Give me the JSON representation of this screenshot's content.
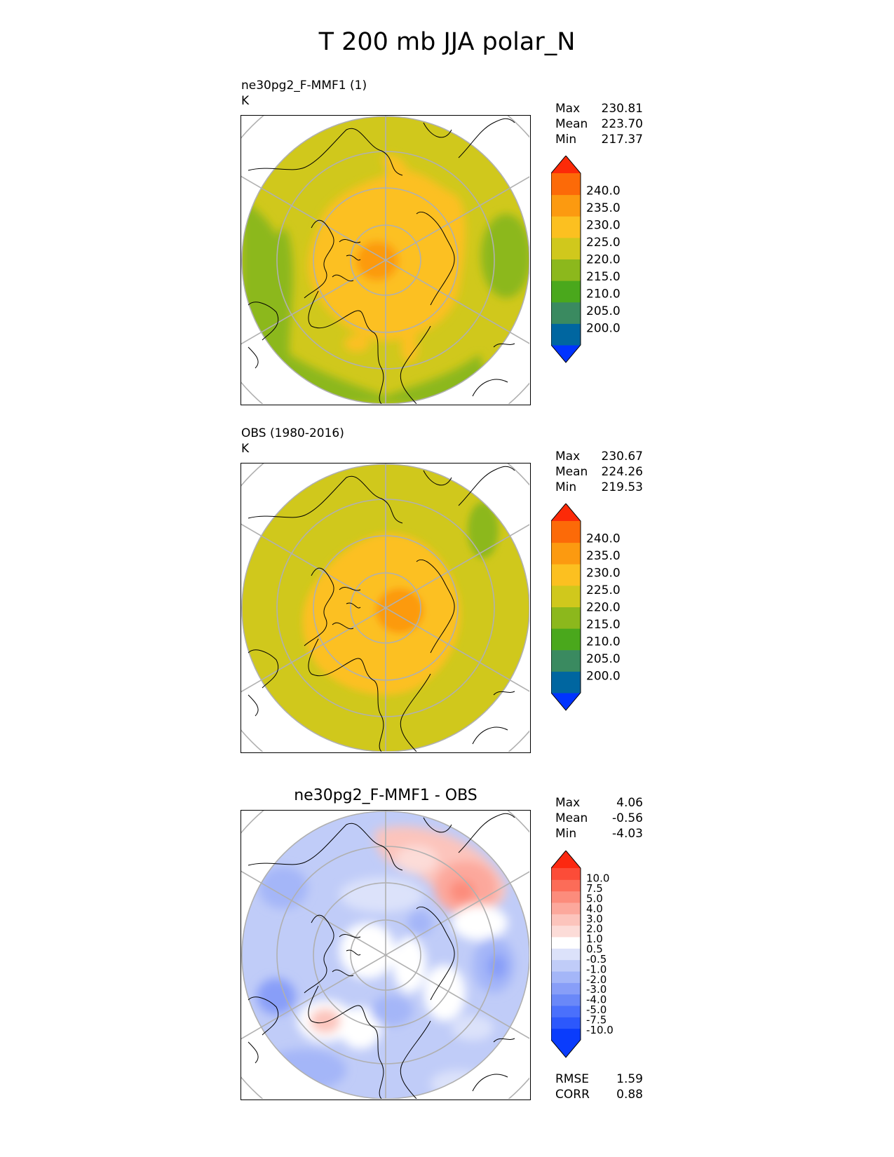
{
  "title": "T 200 mb JJA polar_N",
  "colors": {
    "abs_levels": [
      "#0033ff",
      "#0066a0",
      "#3a8a60",
      "#4aa81c",
      "#8cb81c",
      "#d0c81c",
      "#fcc020",
      "#fc9a10",
      "#fc6a08",
      "#fc2a08"
    ],
    "diff_levels": [
      "#0a3cfc",
      "#2c58fc",
      "#4a70fc",
      "#6a88f8",
      "#889ef8",
      "#a4b6f8",
      "#c0ccf8",
      "#dce2fa",
      "#ffffff",
      "#fcdcd8",
      "#fcc4bc",
      "#fca89c",
      "#fc8c7c",
      "#fc6c58",
      "#fc4c38",
      "#fc2810"
    ]
  },
  "panels": [
    {
      "title_line1": "ne30pg2_F-MMF1 (1)",
      "title_line2": "K",
      "stats": [
        {
          "label": "Max",
          "value": "230.81"
        },
        {
          "label": "Mean",
          "value": "223.70"
        },
        {
          "label": "Min",
          "value": "217.37"
        }
      ],
      "colorbar_ticks": [
        "240.0",
        "235.0",
        "230.0",
        "225.0",
        "220.0",
        "215.0",
        "210.0",
        "205.0",
        "200.0"
      ]
    },
    {
      "title_line1": "OBS (1980-2016)",
      "title_line2": "K",
      "stats": [
        {
          "label": "Max",
          "value": "230.67"
        },
        {
          "label": "Mean",
          "value": "224.26"
        },
        {
          "label": "Min",
          "value": "219.53"
        }
      ],
      "colorbar_ticks": [
        "240.0",
        "235.0",
        "230.0",
        "225.0",
        "220.0",
        "215.0",
        "210.0",
        "205.0",
        "200.0"
      ]
    },
    {
      "title": "ne30pg2_F-MMF1 - OBS",
      "stats": [
        {
          "label": "Max",
          "value": "4.06"
        },
        {
          "label": "Mean",
          "value": "-0.56"
        },
        {
          "label": "Min",
          "value": "-4.03"
        }
      ],
      "colorbar_ticks": [
        "10.0",
        "7.5",
        "5.0",
        "4.0",
        "3.0",
        "2.0",
        "1.0",
        "0.5",
        "-0.5",
        "-1.0",
        "-2.0",
        "-3.0",
        "-4.0",
        "-5.0",
        "-7.5",
        "-10.0"
      ],
      "metrics": [
        {
          "label": "RMSE",
          "value": "1.59"
        },
        {
          "label": "CORR",
          "value": "0.88"
        }
      ]
    }
  ],
  "chart_data": [
    {
      "type": "heatmap",
      "title": "ne30pg2_F-MMF1 (1)",
      "units": "K",
      "projection": "north polar stereographic",
      "levels": [
        200,
        205,
        210,
        215,
        220,
        225,
        230,
        235,
        240
      ],
      "extend": "both",
      "max": 230.81,
      "mean": 223.7,
      "min": 217.37
    },
    {
      "type": "heatmap",
      "title": "OBS (1980-2016)",
      "units": "K",
      "projection": "north polar stereographic",
      "levels": [
        200,
        205,
        210,
        215,
        220,
        225,
        230,
        235,
        240
      ],
      "extend": "both",
      "max": 230.67,
      "mean": 224.26,
      "min": 219.53
    },
    {
      "type": "heatmap",
      "title": "ne30pg2_F-MMF1 - OBS",
      "projection": "north polar stereographic",
      "levels": [
        -10,
        -7.5,
        -5,
        -4,
        -3,
        -2,
        -1,
        -0.5,
        0.5,
        1,
        2,
        3,
        4,
        5,
        7.5,
        10
      ],
      "extend": "both",
      "max": 4.06,
      "mean": -0.56,
      "min": -4.03,
      "rmse": 1.59,
      "corr": 0.88
    }
  ]
}
